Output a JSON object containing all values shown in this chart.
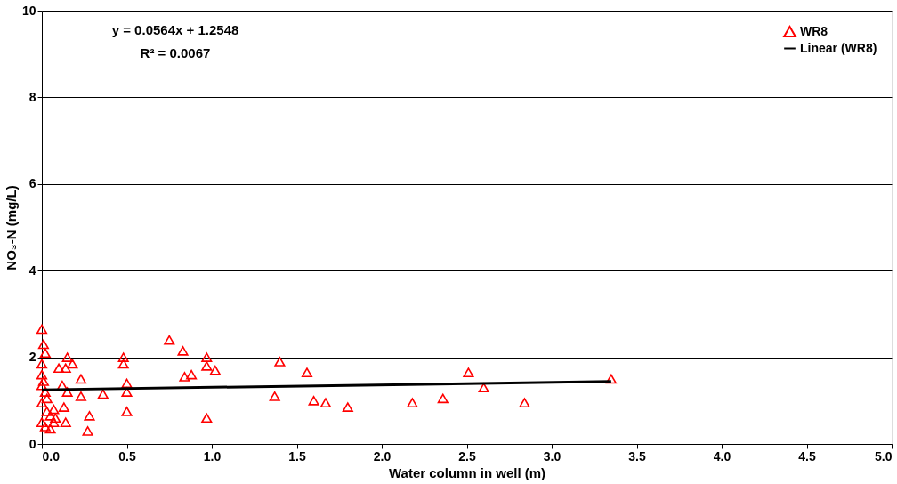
{
  "chart_data": {
    "type": "scatter",
    "xlabel": "Water column in well (m)",
    "ylabel": "NO₃-N (mg/L)",
    "xlim": [
      0,
      5
    ],
    "xticks": [
      {
        "value": 0,
        "label": "0.0"
      },
      {
        "value": 0.5,
        "label": "0.5"
      },
      {
        "value": 1,
        "label": "1.0"
      },
      {
        "value": 1.5,
        "label": "1.5"
      },
      {
        "value": 2,
        "label": "2.0"
      },
      {
        "value": 2.5,
        "label": "2.5"
      },
      {
        "value": 3,
        "label": "3.0"
      },
      {
        "value": 3.5,
        "label": "3.5"
      },
      {
        "value": 4,
        "label": "4.0"
      },
      {
        "value": 4.5,
        "label": "4.5"
      },
      {
        "value": 5,
        "label": "5.0"
      }
    ],
    "ylim": [
      0,
      10
    ],
    "yticks": [
      0,
      2,
      4,
      6,
      8,
      10
    ],
    "grid": "y",
    "legend": "top right",
    "marker": "triangle",
    "annotations": [
      "y = 0.0564x + 1.2548",
      "R² = 0.0067"
    ],
    "series": [
      {
        "name": "WR8",
        "color": "#ff0000",
        "x": [
          0.0,
          0.01,
          0.02,
          0.0,
          0.0,
          0.01,
          0.0,
          0.02,
          0.03,
          0.0,
          0.03,
          0.05,
          0.0,
          0.02,
          0.05,
          0.07,
          0.07,
          0.08,
          0.1,
          0.12,
          0.15,
          0.14,
          0.18,
          0.15,
          0.13,
          0.14,
          0.23,
          0.23,
          0.28,
          0.27,
          0.36,
          0.48,
          0.48,
          0.5,
          0.5,
          0.5,
          0.75,
          0.83,
          0.84,
          0.88,
          0.97,
          0.97,
          1.02,
          0.97,
          1.37,
          1.4,
          1.56,
          1.6,
          1.67,
          1.8,
          2.18,
          2.36,
          2.51,
          2.6,
          2.84,
          3.35
        ],
        "values": [
          2.65,
          2.3,
          2.1,
          1.85,
          1.6,
          1.45,
          1.35,
          1.2,
          1.05,
          0.95,
          0.75,
          0.65,
          0.5,
          0.4,
          0.35,
          0.5,
          0.8,
          0.6,
          1.75,
          1.35,
          2.0,
          1.75,
          1.85,
          1.2,
          0.85,
          0.5,
          1.5,
          1.1,
          0.65,
          0.3,
          1.15,
          2.0,
          1.85,
          1.4,
          1.2,
          0.75,
          2.4,
          2.15,
          1.55,
          1.6,
          2.0,
          1.8,
          1.7,
          0.6,
          1.1,
          1.9,
          1.65,
          1.0,
          0.95,
          0.85,
          0.95,
          1.05,
          1.65,
          1.3,
          0.95,
          1.5
        ]
      },
      {
        "name": "Linear (WR8)",
        "type": "line",
        "marker": "none",
        "line_style": "solid",
        "color": "#000000",
        "x": [
          0,
          3.35
        ],
        "values": [
          1.25,
          1.44
        ]
      }
    ]
  }
}
